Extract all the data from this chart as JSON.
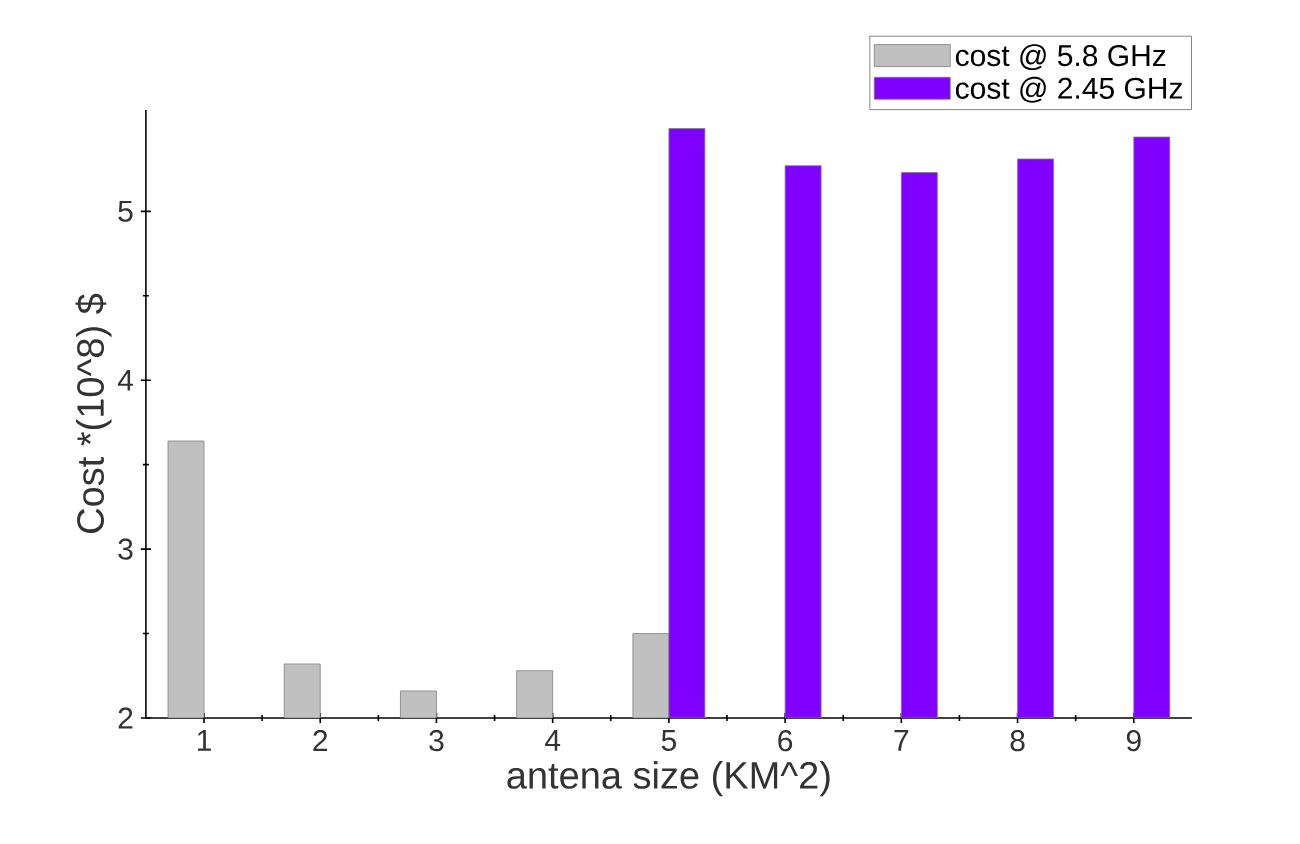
{
  "chart_data": {
    "type": "bar",
    "xlabel": "antena size (KM^2)",
    "ylabel": "Cost *(10^8) $",
    "categories": [
      "1",
      "2",
      "3",
      "4",
      "5",
      "6",
      "7",
      "8",
      "9"
    ],
    "series": [
      {
        "name": "cost @ 5.8 GHz",
        "color": "#c0c0c0",
        "values": [
          3.64,
          2.32,
          2.16,
          2.28,
          2.5,
          null,
          null,
          null,
          null
        ]
      },
      {
        "name": "cost @ 2.45 GHz",
        "color": "#7f00ff",
        "values": [
          null,
          null,
          null,
          null,
          5.49,
          5.27,
          5.23,
          5.31,
          5.44
        ]
      }
    ],
    "ylim": [
      2,
      5.6
    ],
    "yticks": [
      2,
      3,
      4,
      5
    ],
    "legend": "top right"
  }
}
